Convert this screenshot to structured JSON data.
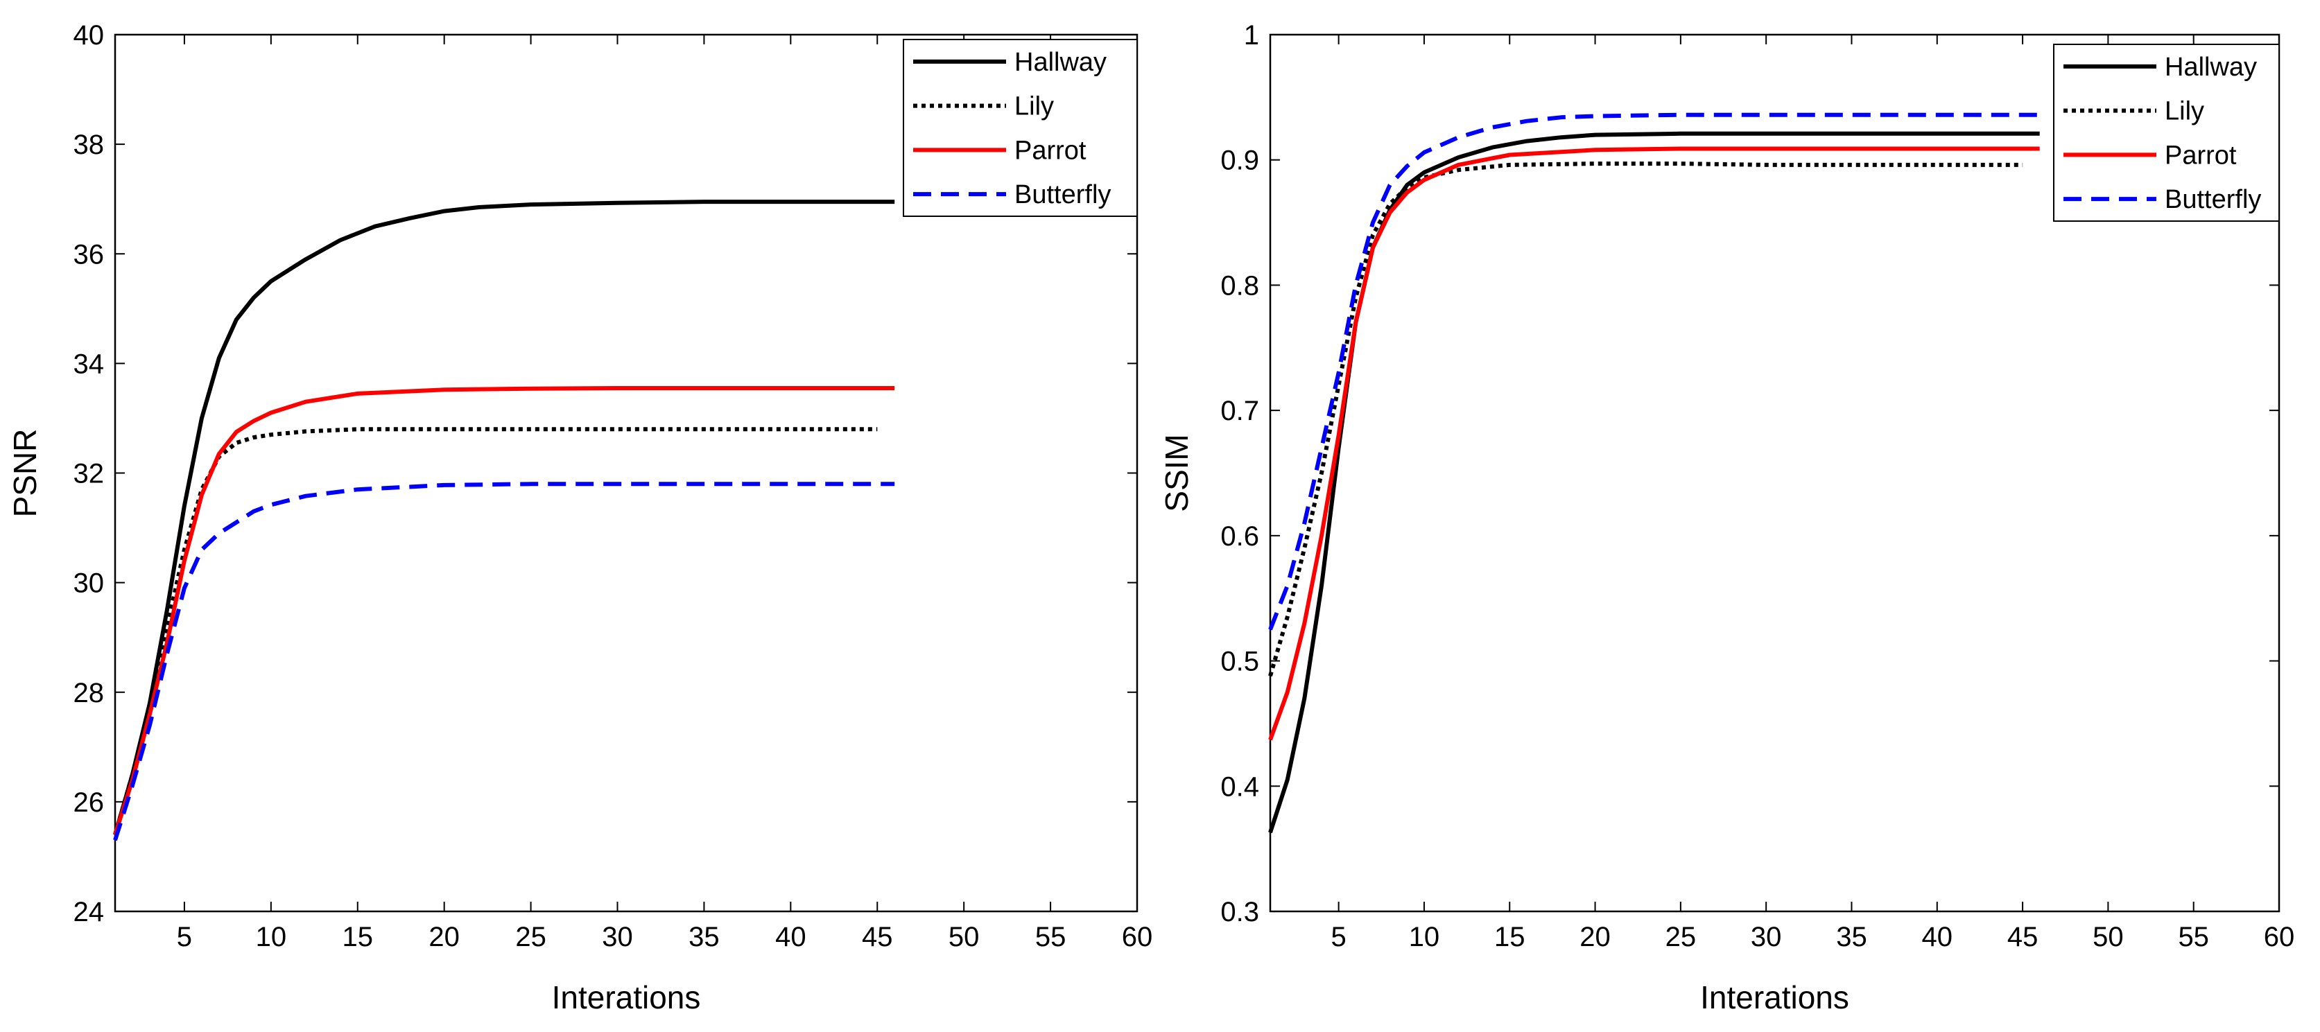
{
  "chart_data": [
    {
      "type": "line",
      "title": "",
      "xlabel": "Interations",
      "ylabel": "PSNR",
      "xlim": [
        1,
        60
      ],
      "ylim": [
        24,
        40
      ],
      "xticks": [
        5,
        10,
        15,
        20,
        25,
        30,
        35,
        40,
        45,
        50,
        55,
        60
      ],
      "yticks": [
        24,
        26,
        28,
        30,
        32,
        34,
        36,
        38,
        40
      ],
      "grid": false,
      "legend_position": "top-right",
      "series": [
        {
          "name": "Hallway",
          "color": "#000000",
          "style": "solid",
          "x": [
            1,
            2,
            3,
            4,
            5,
            6,
            7,
            8,
            9,
            10,
            12,
            14,
            16,
            18,
            20,
            22,
            25,
            30,
            35,
            40,
            46
          ],
          "y": [
            25.4,
            26.5,
            27.8,
            29.5,
            31.4,
            33.0,
            34.1,
            34.8,
            35.2,
            35.5,
            35.9,
            36.25,
            36.5,
            36.65,
            36.78,
            36.85,
            36.9,
            36.93,
            36.95,
            36.95,
            36.95
          ]
        },
        {
          "name": "Lily",
          "color": "#000000",
          "style": "dotted",
          "x": [
            1,
            2,
            3,
            4,
            5,
            6,
            7,
            8,
            9,
            10,
            12,
            15,
            20,
            25,
            30,
            35,
            40,
            45
          ],
          "y": [
            25.4,
            26.5,
            27.7,
            29.2,
            30.6,
            31.7,
            32.3,
            32.55,
            32.65,
            32.7,
            32.76,
            32.8,
            32.8,
            32.8,
            32.8,
            32.8,
            32.8,
            32.8
          ]
        },
        {
          "name": "Parrot",
          "color": "#ff0000",
          "style": "solid",
          "x": [
            1,
            2,
            3,
            4,
            5,
            6,
            7,
            8,
            9,
            10,
            12,
            15,
            20,
            25,
            30,
            35,
            40,
            46
          ],
          "y": [
            25.4,
            26.4,
            27.6,
            28.9,
            30.4,
            31.6,
            32.35,
            32.75,
            32.95,
            33.1,
            33.3,
            33.45,
            33.52,
            33.54,
            33.55,
            33.55,
            33.55,
            33.55
          ]
        },
        {
          "name": "Butterfly",
          "color": "#0000ff",
          "style": "dashed",
          "x": [
            1,
            2,
            3,
            4,
            5,
            6,
            7,
            8,
            9,
            10,
            12,
            15,
            20,
            25,
            30,
            35,
            40,
            46
          ],
          "y": [
            25.3,
            26.3,
            27.4,
            28.7,
            29.9,
            30.6,
            30.9,
            31.1,
            31.3,
            31.42,
            31.58,
            31.7,
            31.78,
            31.8,
            31.8,
            31.8,
            31.8,
            31.8
          ]
        }
      ]
    },
    {
      "type": "line",
      "title": "",
      "xlabel": "Interations",
      "ylabel": "SSIM",
      "xlim": [
        1,
        60
      ],
      "ylim": [
        0.3,
        1
      ],
      "xticks": [
        5,
        10,
        15,
        20,
        25,
        30,
        35,
        40,
        45,
        50,
        55,
        60
      ],
      "yticks": [
        0.3,
        0.4,
        0.5,
        0.6,
        0.7,
        0.8,
        0.9,
        1
      ],
      "grid": false,
      "legend_position": "top-right",
      "series": [
        {
          "name": "Hallway",
          "color": "#000000",
          "style": "solid",
          "x": [
            1,
            2,
            3,
            4,
            5,
            6,
            7,
            8,
            9,
            10,
            12,
            14,
            16,
            18,
            20,
            25,
            30,
            35,
            40,
            46
          ],
          "y": [
            0.363,
            0.405,
            0.47,
            0.56,
            0.67,
            0.77,
            0.83,
            0.86,
            0.88,
            0.89,
            0.902,
            0.91,
            0.915,
            0.918,
            0.92,
            0.921,
            0.921,
            0.921,
            0.921,
            0.921
          ]
        },
        {
          "name": "Lily",
          "color": "#000000",
          "style": "dotted",
          "x": [
            1,
            2,
            3,
            4,
            5,
            6,
            7,
            8,
            9,
            10,
            12,
            15,
            20,
            25,
            30,
            35,
            40,
            45
          ],
          "y": [
            0.488,
            0.535,
            0.59,
            0.65,
            0.72,
            0.79,
            0.84,
            0.865,
            0.878,
            0.886,
            0.892,
            0.896,
            0.897,
            0.897,
            0.896,
            0.896,
            0.896,
            0.896
          ]
        },
        {
          "name": "Parrot",
          "color": "#ff0000",
          "style": "solid",
          "x": [
            1,
            2,
            3,
            4,
            5,
            6,
            7,
            8,
            9,
            10,
            12,
            15,
            20,
            25,
            30,
            35,
            40,
            46
          ],
          "y": [
            0.437,
            0.475,
            0.53,
            0.6,
            0.68,
            0.77,
            0.83,
            0.858,
            0.874,
            0.884,
            0.896,
            0.904,
            0.908,
            0.909,
            0.909,
            0.909,
            0.909,
            0.909
          ]
        },
        {
          "name": "Butterfly",
          "color": "#0000ff",
          "style": "dashed",
          "x": [
            1,
            2,
            3,
            4,
            5,
            6,
            7,
            8,
            9,
            10,
            12,
            14,
            16,
            18,
            20,
            25,
            30,
            35,
            40,
            46
          ],
          "y": [
            0.525,
            0.56,
            0.61,
            0.67,
            0.73,
            0.8,
            0.85,
            0.88,
            0.895,
            0.906,
            0.918,
            0.926,
            0.931,
            0.934,
            0.935,
            0.936,
            0.936,
            0.936,
            0.936,
            0.936
          ]
        }
      ]
    }
  ]
}
